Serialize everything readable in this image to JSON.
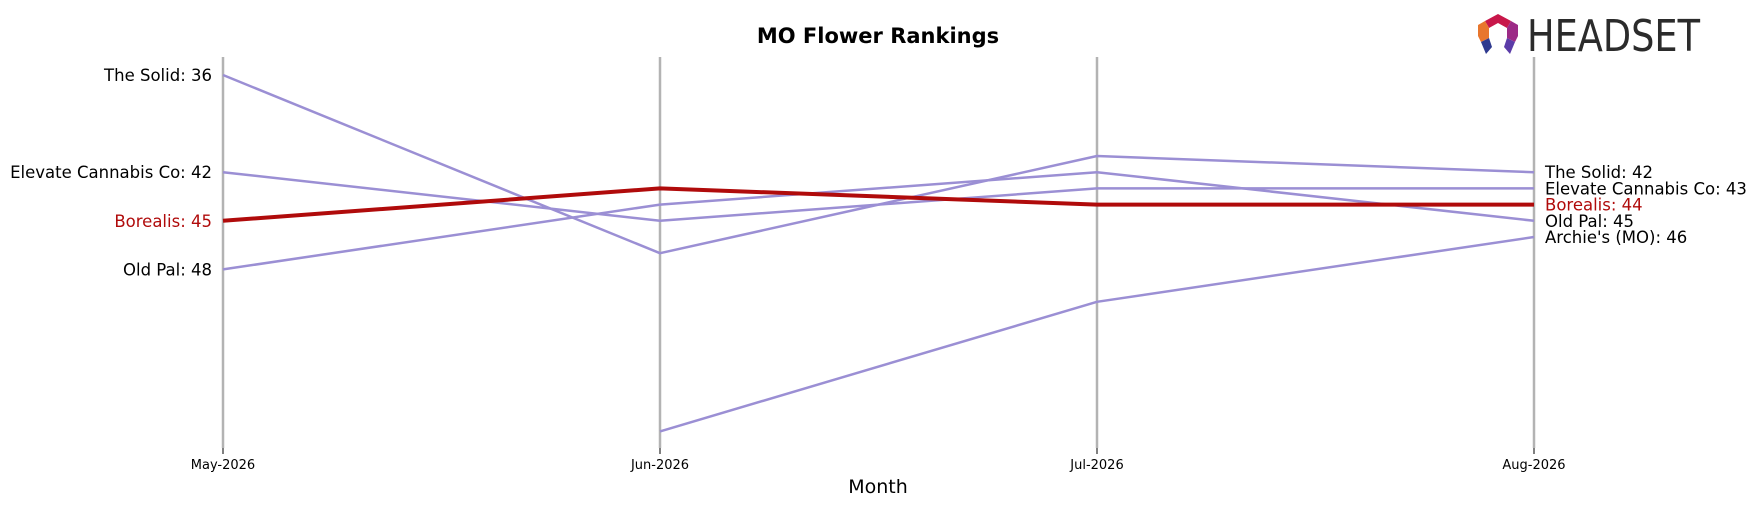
{
  "brand": {
    "logo_text": "HEADSET",
    "logo_colors": [
      "#c8174a",
      "#e8762d",
      "#9c2a86",
      "#2f3a8f",
      "#5b3ca8"
    ]
  },
  "chart_data": {
    "type": "line",
    "title": "MO Flower Rankings",
    "xlabel": "Month",
    "ylabel": "",
    "y_inverted": true,
    "ylim": [
      36,
      61
    ],
    "grid": false,
    "categories": [
      "May-2026",
      "Jun-2026",
      "Jul-2026",
      "Aug-2026"
    ],
    "highlight_color": "#b00b0b",
    "series_color": "#9b8fd4",
    "month_line_color": "#b3b3b3",
    "series": [
      {
        "name": "The Solid",
        "values": [
          36,
          47,
          41,
          42
        ],
        "highlight": false,
        "start_label": "The Solid: 36",
        "end_label": "The Solid: 42"
      },
      {
        "name": "Elevate Cannabis Co",
        "values": [
          42,
          45,
          43,
          43
        ],
        "highlight": false,
        "start_label": "Elevate Cannabis Co: 42",
        "end_label": "Elevate Cannabis Co: 43"
      },
      {
        "name": "Borealis",
        "values": [
          45,
          43,
          44,
          44
        ],
        "highlight": true,
        "start_label": "Borealis: 45",
        "end_label": "Borealis: 44"
      },
      {
        "name": "Old Pal",
        "values": [
          48,
          44,
          42,
          45
        ],
        "highlight": false,
        "start_label": "Old Pal: 48",
        "end_label": "Old Pal: 45"
      },
      {
        "name": "Archie's (MO)",
        "values": [
          null,
          58,
          50,
          46
        ],
        "highlight": false,
        "start_label": "",
        "end_label": "Archie's (MO): 46"
      }
    ]
  }
}
